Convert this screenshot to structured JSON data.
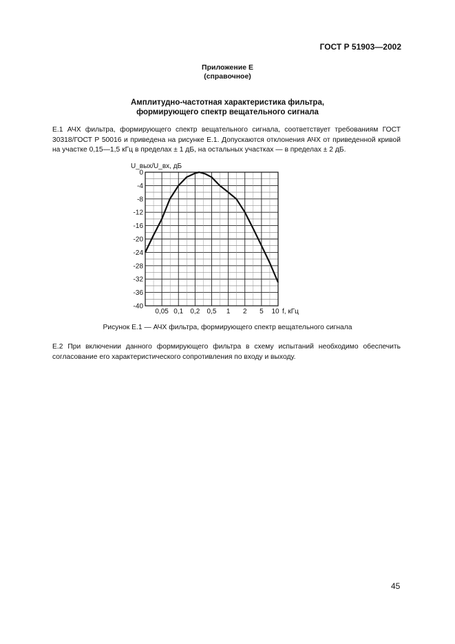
{
  "header": {
    "standard": "ГОСТ Р 51903—2002"
  },
  "annex": {
    "title": "Приложение Е",
    "status": "(справочное)"
  },
  "section_title": [
    "Амплитудно-частотная характеристика фильтра,",
    "формирующего спектр вещательного сигнала"
  ],
  "paragraphs": {
    "p1": "Е.1 АЧХ фильтра, формирующего спектр вещательного сигнала, соответствует требованиям ГОСТ 30318/ГОСТ Р 50016 и приведена на рисунке Е.1. Допускаются отклонения АЧХ от приведенной кривой на участке 0,15—1,5 кГц в пределах ± 1 дБ, на остальных участках — в пределах ± 2 дБ.",
    "p2": "Е.2 При включении данного формирующего фильтра в схему испытаний необходимо обеспечить согласование его характеристического сопротивления по входу и выходу."
  },
  "figure_caption": "Рисунок Е.1 — АЧХ фильтра, формирующего спектр вещательного сигнала",
  "page_number": "45",
  "chart_data": {
    "type": "line",
    "ylabel": "U_вых/U_вх, дБ",
    "xlabel": "f, кГц",
    "x_tick_labels": [
      "0,05",
      "0,1",
      "0,2",
      "0,5",
      "1",
      "2",
      "5",
      "10"
    ],
    "y_ticks": [
      0,
      -4,
      -8,
      -12,
      -16,
      -20,
      -24,
      -28,
      -32,
      -36,
      -40
    ],
    "ylim": [
      -40,
      0
    ],
    "grid": true,
    "x_scale": "log (tick labels equally spaced)",
    "series": [
      {
        "x": [
          0.025,
          0.035,
          0.05,
          0.07,
          0.1,
          0.14,
          0.2,
          0.25,
          0.35,
          0.5,
          0.7,
          1,
          1.4,
          2,
          3.2,
          5,
          7,
          10
        ],
        "y": [
          -24,
          -19,
          -14,
          -8,
          -4,
          -1.5,
          -0.3,
          0,
          -0.5,
          -1.5,
          -4,
          -6,
          -8,
          -12,
          -17,
          -22,
          -27,
          -33
        ]
      }
    ],
    "color": "#111111"
  }
}
